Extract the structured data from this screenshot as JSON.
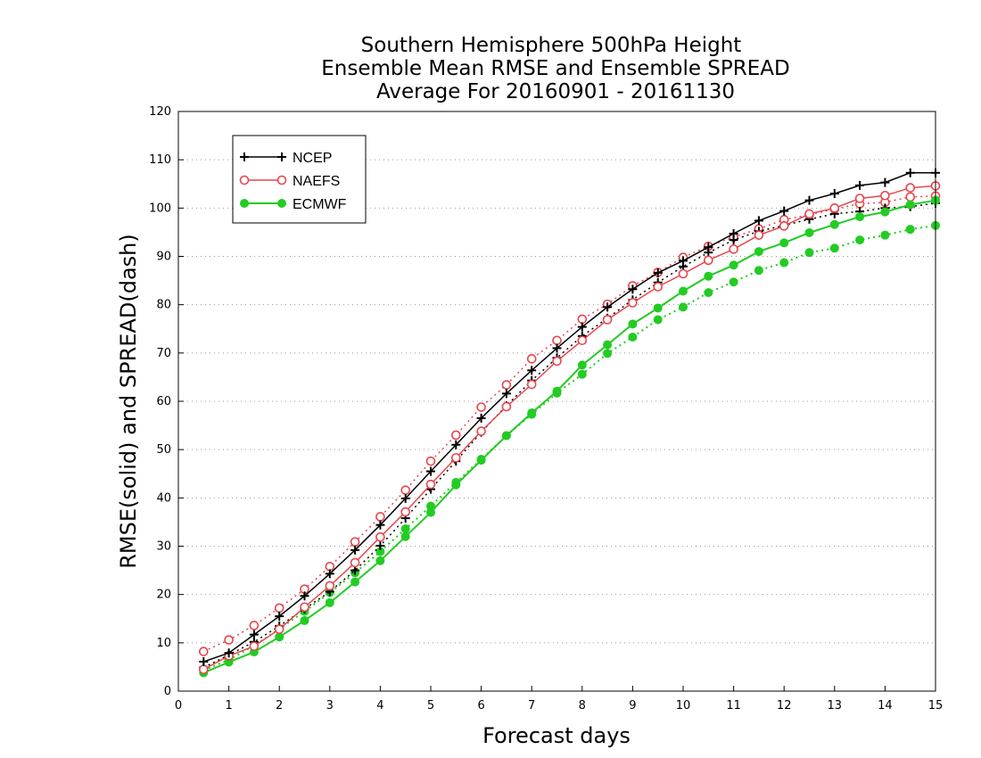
{
  "chart_data": {
    "type": "line",
    "title_lines": [
      "Southern Hemisphere 500hPa Height",
      "Ensemble Mean RMSE and Ensemble SPREAD",
      "Average For 20160901 - 20161130"
    ],
    "xlabel": "Forecast days",
    "ylabel": "RMSE(solid) and SPREAD(dash)",
    "xlim": [
      0,
      15
    ],
    "ylim": [
      0,
      120
    ],
    "x_ticks": [
      "0",
      "1",
      "2",
      "3",
      "4",
      "5",
      "6",
      "7",
      "8",
      "9",
      "10",
      "11",
      "12",
      "13",
      "14",
      "15"
    ],
    "y_ticks": [
      "0",
      "10",
      "20",
      "30",
      "40",
      "50",
      "60",
      "70",
      "80",
      "90",
      "100",
      "110",
      "120"
    ],
    "grid": "horizontal dotted",
    "legend_position": "top-left",
    "x": [
      0.5,
      1,
      1.5,
      2,
      2.5,
      3,
      3.5,
      4,
      4.5,
      5,
      5.5,
      6,
      6.5,
      7,
      7.5,
      8,
      8.5,
      9,
      9.5,
      10,
      10.5,
      11,
      11.5,
      12,
      12.5,
      13,
      13.5,
      14,
      14.5,
      15
    ],
    "series": [
      {
        "name": "NCEP",
        "color": "#000000",
        "marker": "plus",
        "rmse": [
          6.1,
          7.9,
          11.7,
          15.5,
          19.7,
          24.3,
          29.2,
          34.4,
          39.9,
          45.5,
          51.0,
          56.5,
          61.6,
          66.4,
          71.0,
          75.4,
          79.5,
          83.2,
          86.6,
          89.1,
          91.9,
          94.7,
          97.4,
          99.4,
          101.6,
          103.0,
          104.7,
          105.3,
          107.3,
          107.3
        ],
        "spread": [
          4.9,
          7.5,
          10.2,
          13.5,
          17.0,
          20.6,
          25.0,
          30.1,
          35.8,
          41.8,
          47.6,
          53.6,
          59.1,
          64.3,
          69.0,
          73.5,
          77.2,
          81.0,
          84.6,
          87.9,
          90.8,
          93.4,
          95.2,
          96.4,
          97.7,
          98.8,
          99.3,
          100.0,
          100.3,
          101.0
        ]
      },
      {
        "name": "NAEFS",
        "color": "#e8454b",
        "marker": "open-circle",
        "rmse": [
          4.5,
          7.3,
          9.3,
          12.8,
          17.4,
          21.8,
          26.6,
          31.9,
          37.1,
          42.8,
          48.3,
          53.8,
          58.9,
          63.5,
          68.3,
          72.6,
          76.9,
          80.4,
          83.7,
          86.4,
          89.2,
          91.5,
          94.4,
          96.3,
          98.8,
          100.0,
          102.0,
          102.6,
          104.2,
          104.6
        ],
        "spread": [
          8.2,
          10.6,
          13.6,
          17.2,
          21.1,
          25.8,
          30.9,
          36.1,
          41.6,
          47.6,
          53.0,
          58.8,
          63.4,
          68.8,
          72.6,
          77.0,
          80.1,
          83.9,
          86.7,
          89.8,
          92.1,
          94.0,
          95.7,
          97.6,
          98.6,
          99.8,
          100.9,
          101.2,
          102.3,
          102.5
        ]
      },
      {
        "name": "ECMWF",
        "color": "#22cc22",
        "marker": "filled-circle",
        "rmse": [
          3.8,
          6.0,
          8.1,
          11.2,
          14.6,
          18.3,
          22.6,
          27.0,
          32.0,
          37.0,
          42.7,
          47.8,
          52.9,
          57.6,
          62.1,
          67.5,
          71.7,
          76.0,
          79.3,
          82.8,
          85.9,
          88.2,
          91.0,
          92.8,
          94.9,
          96.6,
          98.2,
          99.2,
          100.7,
          101.6
        ],
        "spread": [
          4.3,
          6.5,
          9.4,
          12.9,
          16.5,
          20.4,
          24.5,
          28.9,
          33.6,
          38.3,
          43.2,
          48.0,
          52.9,
          57.3,
          61.7,
          65.6,
          69.9,
          73.3,
          76.9,
          79.5,
          82.5,
          84.7,
          87.1,
          88.7,
          90.8,
          91.7,
          93.4,
          94.4,
          95.6,
          96.4
        ]
      }
    ]
  }
}
